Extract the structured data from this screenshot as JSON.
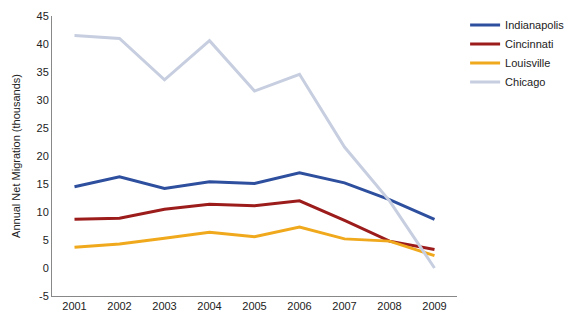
{
  "chart_data": {
    "type": "line",
    "y_label": "Annual Net Migration (thousands)",
    "categories": [
      "2001",
      "2002",
      "2003",
      "2004",
      "2005",
      "2006",
      "2007",
      "2008",
      "2009"
    ],
    "series": [
      {
        "name": "Indianapolis",
        "color": "#2e4f9e",
        "values": [
          14.5,
          16.3,
          14.2,
          15.4,
          15.1,
          17.0,
          15.2,
          12.2,
          8.7
        ]
      },
      {
        "name": "Cincinnati",
        "color": "#9c1c1c",
        "values": [
          8.7,
          8.9,
          10.5,
          11.4,
          11.1,
          12.0,
          8.5,
          4.8,
          3.3
        ]
      },
      {
        "name": "Louisville",
        "color": "#f0a91c",
        "values": [
          3.7,
          4.3,
          5.3,
          6.4,
          5.6,
          7.3,
          5.2,
          4.8,
          2.2
        ]
      },
      {
        "name": "Chicago",
        "color": "#c6cee0",
        "values": [
          41.5,
          41.0,
          33.6,
          40.6,
          31.6,
          34.6,
          21.6,
          12.0,
          0.0
        ]
      }
    ],
    "ylim": [
      -5,
      45
    ],
    "yticks": [
      -5,
      0,
      5,
      10,
      15,
      20,
      25,
      30,
      35,
      40,
      45
    ],
    "grid": false,
    "legend": "right"
  }
}
